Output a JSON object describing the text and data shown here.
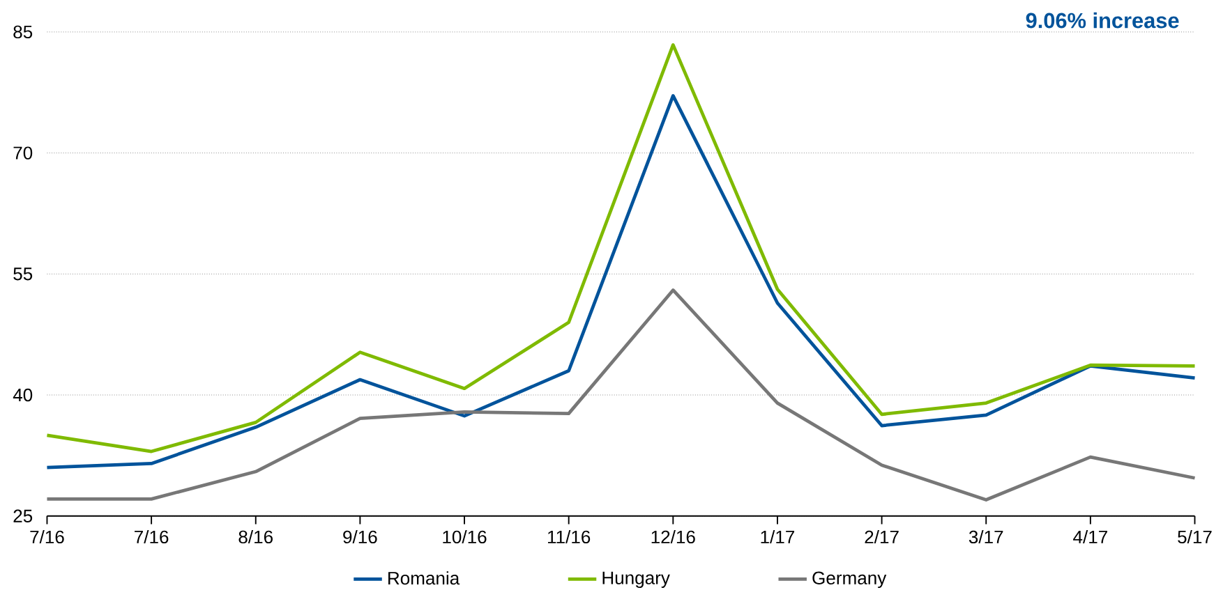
{
  "chart_data": {
    "type": "line",
    "categories": [
      "7/16",
      "7/16",
      "8/16",
      "9/16",
      "10/16",
      "11/16",
      "12/16",
      "1/17",
      "2/17",
      "3/17",
      "4/17",
      "5/17"
    ],
    "series": [
      {
        "name": "Romania",
        "color": "#00539b",
        "values": [
          31.0,
          31.5,
          36.0,
          41.9,
          37.4,
          43.0,
          77.1,
          51.4,
          36.2,
          37.5,
          43.6,
          42.1
        ]
      },
      {
        "name": "Hungary",
        "color": "#7fba00",
        "values": [
          35.0,
          33.0,
          36.6,
          45.3,
          40.8,
          49.0,
          83.4,
          53.1,
          37.6,
          39.0,
          43.7,
          43.6
        ]
      },
      {
        "name": "Germany",
        "color": "#777777",
        "values": [
          27.1,
          27.1,
          30.5,
          37.1,
          37.9,
          37.7,
          53.0,
          39.0,
          31.3,
          27.0,
          32.3,
          29.7
        ]
      }
    ],
    "ylim": [
      25,
      85
    ],
    "yticks": [
      25,
      40,
      55,
      70,
      85
    ],
    "grid": "y",
    "legend": "bottom",
    "marker": "none",
    "line_style": "solid",
    "annotations": [
      "9.06% increase"
    ]
  }
}
